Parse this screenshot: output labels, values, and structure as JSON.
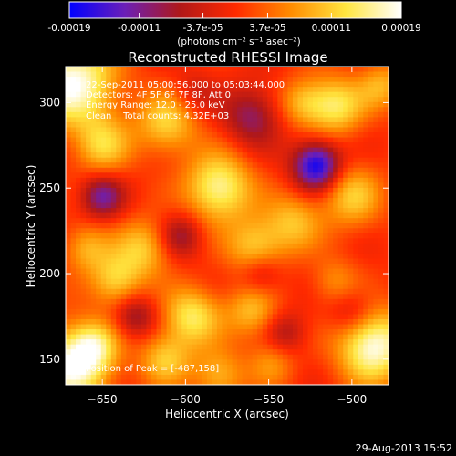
{
  "chart_data": {
    "type": "heatmap",
    "title": "Reconstructed RHESSI Image",
    "xlabel": "Heliocentric X (arcsec)",
    "ylabel": "Heliocentric Y (arcsec)",
    "xlim": [
      -672,
      -478
    ],
    "ylim": [
      135,
      321
    ],
    "xticks": [
      -650,
      -600,
      -550,
      -500
    ],
    "yticks": [
      150,
      200,
      250,
      300
    ],
    "grid": false,
    "colorbar": {
      "position": "top",
      "range": [
        -0.00019,
        0.00019
      ],
      "ticks": [
        "-0.00019",
        "-0.00011",
        "-3.7e-05",
        "3.7e-05",
        "0.00011",
        "0.00019"
      ],
      "tick_values": [
        -0.00019,
        -0.00011,
        -3.7e-05,
        3.7e-05,
        0.00011,
        0.00019
      ],
      "unit_label": "(photons cm⁻² s⁻¹ asec⁻²)",
      "colors": [
        "#0000ff",
        "#6b1fb8",
        "#b01818",
        "#ff2a00",
        "#ff8c00",
        "#ffe640",
        "#ffffff"
      ]
    },
    "annotations": [
      "22-Sep-2011 05:00:56.000 to 05:03:44.000",
      "Detectors: 4F 5F 6F 7F 8F, Att 0",
      "Energy Range: 12.0 - 25.0 keV",
      "Clean    Total counts: 4.32E+03"
    ],
    "peak_label": "Position of Peak = [-487,158]",
    "peak": [
      -487,
      158
    ],
    "min_point": [
      -521,
      263
    ],
    "features": [
      {
        "x": -668,
        "y": 312,
        "v": 1.0,
        "s": 18
      },
      {
        "x": -668,
        "y": 146,
        "v": 0.95,
        "s": 16
      },
      {
        "x": -487,
        "y": 158,
        "v": 1.0,
        "s": 15
      },
      {
        "x": -650,
        "y": 275,
        "v": 0.55,
        "s": 12
      },
      {
        "x": -611,
        "y": 288,
        "v": 0.6,
        "s": 13
      },
      {
        "x": -580,
        "y": 250,
        "v": 0.85,
        "s": 14
      },
      {
        "x": -558,
        "y": 215,
        "v": 0.6,
        "s": 12
      },
      {
        "x": -625,
        "y": 215,
        "v": 0.55,
        "s": 12
      },
      {
        "x": -596,
        "y": 175,
        "v": 0.7,
        "s": 12
      },
      {
        "x": -560,
        "y": 178,
        "v": 0.5,
        "s": 11
      },
      {
        "x": -642,
        "y": 196,
        "v": 0.6,
        "s": 11
      },
      {
        "x": -660,
        "y": 215,
        "v": 0.45,
        "s": 10
      },
      {
        "x": -535,
        "y": 230,
        "v": 0.5,
        "s": 12
      },
      {
        "x": -500,
        "y": 245,
        "v": 0.55,
        "s": 13
      },
      {
        "x": -510,
        "y": 298,
        "v": 0.7,
        "s": 12
      },
      {
        "x": -482,
        "y": 310,
        "v": 0.45,
        "s": 10
      },
      {
        "x": -530,
        "y": 300,
        "v": 0.45,
        "s": 10
      },
      {
        "x": -655,
        "y": 158,
        "v": 0.5,
        "s": 10
      },
      {
        "x": -612,
        "y": 150,
        "v": 0.55,
        "s": 11
      },
      {
        "x": -580,
        "y": 140,
        "v": 0.5,
        "s": 11
      },
      {
        "x": -548,
        "y": 148,
        "v": 0.35,
        "s": 10
      },
      {
        "x": -510,
        "y": 195,
        "v": 0.35,
        "s": 10
      },
      {
        "x": -521,
        "y": 263,
        "v": -1.0,
        "s": 10
      },
      {
        "x": -650,
        "y": 245,
        "v": -0.6,
        "s": 9
      },
      {
        "x": -603,
        "y": 222,
        "v": -0.45,
        "s": 9
      },
      {
        "x": -560,
        "y": 292,
        "v": -0.5,
        "s": 12
      },
      {
        "x": -630,
        "y": 175,
        "v": -0.45,
        "s": 9
      },
      {
        "x": -555,
        "y": 200,
        "v": -0.4,
        "s": 9
      },
      {
        "x": -500,
        "y": 178,
        "v": -0.35,
        "s": 10
      },
      {
        "x": -595,
        "y": 305,
        "v": -0.25,
        "s": 9
      },
      {
        "x": -540,
        "y": 165,
        "v": -0.35,
        "s": 9
      }
    ]
  },
  "footer": {
    "timestamp": "29-Aug-2013 15:52"
  }
}
